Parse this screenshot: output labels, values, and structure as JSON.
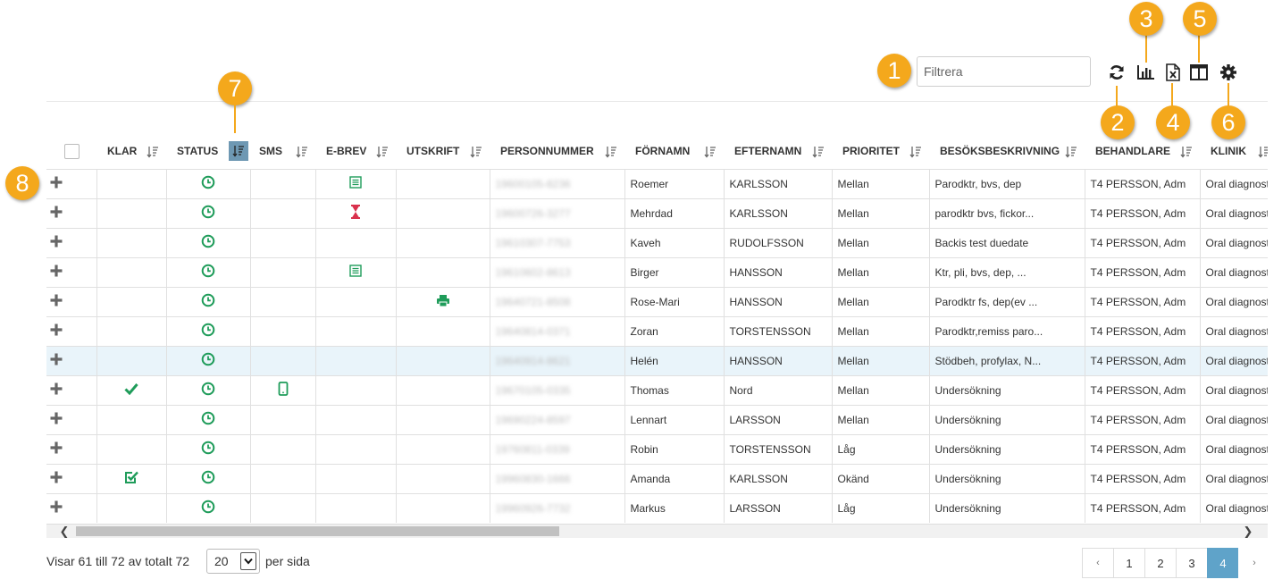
{
  "toolbar": {
    "filter_placeholder": "Filtrera",
    "icons": [
      "refresh-icon",
      "chart-icon",
      "excel-export-icon",
      "columns-icon",
      "settings-icon"
    ]
  },
  "callouts": [
    "1",
    "2",
    "3",
    "4",
    "5",
    "6",
    "7",
    "8"
  ],
  "table": {
    "columns": [
      "KLAR",
      "STATUS",
      "SMS",
      "E-BREV",
      "UTSKRIFT",
      "PERSONNUMMER",
      "FÖRNAMN",
      "EFTERNAMN",
      "PRIORITET",
      "BESÖKSBESKRIVNING",
      "BEHANDLARE",
      "KLINIK"
    ],
    "rows": [
      {
        "klar": "",
        "status": "clock",
        "sms": "",
        "ebrev": "letter",
        "utskrift": "",
        "pnr": "19600105-8236",
        "fornamn": "Roemer",
        "efternamn": "KARLSSON",
        "prioritet": "Mellan",
        "besok": "Parodktr, bvs, dep",
        "behandlare": "T4 PERSSON, Adm",
        "klinik": "Oral diagnost"
      },
      {
        "klar": "",
        "status": "clock",
        "sms": "",
        "ebrev": "hourglass",
        "utskrift": "",
        "pnr": "19600726-3277",
        "fornamn": "Mehrdad",
        "efternamn": "KARLSSON",
        "prioritet": "Mellan",
        "besok": "parodktr bvs, fickor...",
        "behandlare": "T4 PERSSON, Adm",
        "klinik": "Oral diagnost"
      },
      {
        "klar": "",
        "status": "clock",
        "sms": "",
        "ebrev": "",
        "utskrift": "",
        "pnr": "19610307-7753",
        "fornamn": "Kaveh",
        "efternamn": "RUDOLFSSON",
        "prioritet": "Mellan",
        "besok": "Backis test duedate",
        "behandlare": "T4 PERSSON, Adm",
        "klinik": "Oral diagnost"
      },
      {
        "klar": "",
        "status": "clock",
        "sms": "",
        "ebrev": "letter",
        "utskrift": "",
        "pnr": "19610602-8613",
        "fornamn": "Birger",
        "efternamn": "HANSSON",
        "prioritet": "Mellan",
        "besok": "Ktr, pli, bvs, dep, ...",
        "behandlare": "T4 PERSSON, Adm",
        "klinik": "Oral diagnost"
      },
      {
        "klar": "",
        "status": "clock",
        "sms": "",
        "ebrev": "",
        "utskrift": "printer",
        "pnr": "19640721-8508",
        "fornamn": "Rose-Mari",
        "efternamn": "HANSSON",
        "prioritet": "Mellan",
        "besok": "Parodktr fs, dep(ev ...",
        "behandlare": "T4 PERSSON, Adm",
        "klinik": "Oral diagnost"
      },
      {
        "klar": "",
        "status": "clock",
        "sms": "",
        "ebrev": "",
        "utskrift": "",
        "pnr": "19640814-0371",
        "fornamn": "Zoran",
        "efternamn": "TORSTENSSON",
        "prioritet": "Mellan",
        "besok": "Parodktr,remiss paro...",
        "behandlare": "T4 PERSSON, Adm",
        "klinik": "Oral diagnost"
      },
      {
        "klar": "",
        "status": "clock",
        "sms": "",
        "ebrev": "",
        "utskrift": "",
        "pnr": "19640914-8621",
        "fornamn": "Helén",
        "efternamn": "HANSSON",
        "prioritet": "Mellan",
        "besok": "Stödbeh, profylax, N...",
        "behandlare": "T4 PERSSON, Adm",
        "klinik": "Oral diagnost"
      },
      {
        "klar": "check",
        "status": "clock",
        "sms": "phone",
        "ebrev": "",
        "utskrift": "",
        "pnr": "19670105-0335",
        "fornamn": "Thomas",
        "efternamn": "Nord",
        "prioritet": "Mellan",
        "besok": "Undersökning",
        "behandlare": "T4 PERSSON, Adm",
        "klinik": "Oral diagnost"
      },
      {
        "klar": "",
        "status": "clock",
        "sms": "",
        "ebrev": "",
        "utskrift": "",
        "pnr": "19690224-8597",
        "fornamn": "Lennart",
        "efternamn": "LARSSON",
        "prioritet": "Mellan",
        "besok": "Undersökning",
        "behandlare": "T4 PERSSON, Adm",
        "klinik": "Oral diagnost"
      },
      {
        "klar": "",
        "status": "clock",
        "sms": "",
        "ebrev": "",
        "utskrift": "",
        "pnr": "19760811-0339",
        "fornamn": "Robin",
        "efternamn": "TORSTENSSON",
        "prioritet": "Låg",
        "besok": "Undersökning",
        "behandlare": "T4 PERSSON, Adm",
        "klinik": "Oral diagnost"
      },
      {
        "klar": "checkbox",
        "status": "clock",
        "sms": "",
        "ebrev": "",
        "utskrift": "",
        "pnr": "19960830-1666",
        "fornamn": "Amanda",
        "efternamn": "KARLSSON",
        "prioritet": "Okänd",
        "besok": "Undersökning",
        "behandlare": "T4 PERSSON, Adm",
        "klinik": "Oral diagnost"
      },
      {
        "klar": "",
        "status": "clock",
        "sms": "",
        "ebrev": "",
        "utskrift": "",
        "pnr": "19960926-7732",
        "fornamn": "Markus",
        "efternamn": "LARSSON",
        "prioritet": "Låg",
        "besok": "Undersökning",
        "behandlare": "T4 PERSSON, Adm",
        "klinik": "Oral diagnost"
      }
    ],
    "highlighted_row": 6
  },
  "footer": {
    "showing_text": "Visar 61 till 72 av totalt 72",
    "page_size": "20",
    "per_page_label": "per sida",
    "pages": [
      "1",
      "2",
      "3",
      "4"
    ],
    "current_page": "4",
    "prev": "‹",
    "next": "›"
  },
  "colors": {
    "accent": "#f4a81c",
    "green": "#1f9c5a",
    "red": "#d9304c",
    "blue_active": "#5fa3c9",
    "sort_active": "#6e98b3",
    "row_highlight": "#e9f4fa"
  }
}
